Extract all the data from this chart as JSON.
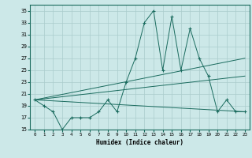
{
  "xlabel": "Humidex (Indice chaleur)",
  "bg_color": "#cce8e8",
  "grid_color": "#aacccc",
  "line_color": "#1a6b5e",
  "xlim": [
    -0.5,
    23.5
  ],
  "ylim": [
    15,
    36
  ],
  "yticks": [
    15,
    17,
    19,
    21,
    23,
    25,
    27,
    29,
    31,
    33,
    35
  ],
  "xticks": [
    0,
    1,
    2,
    3,
    4,
    5,
    6,
    7,
    8,
    9,
    10,
    11,
    12,
    13,
    14,
    15,
    16,
    17,
    18,
    19,
    20,
    21,
    22,
    23
  ],
  "series1_x": [
    0,
    1,
    2,
    3,
    4,
    5,
    6,
    7,
    8,
    9,
    10,
    11,
    12,
    13,
    14,
    15,
    16,
    17,
    18,
    19,
    20,
    21,
    22,
    23
  ],
  "series1_y": [
    20,
    19,
    18,
    15,
    17,
    17,
    17,
    18,
    20,
    18,
    23,
    27,
    33,
    35,
    25,
    34,
    25,
    32,
    27,
    24,
    18,
    20,
    18,
    18
  ],
  "trend1_x": [
    0,
    23
  ],
  "trend1_y": [
    20,
    27
  ],
  "trend2_x": [
    0,
    23
  ],
  "trend2_y": [
    20,
    24
  ],
  "trend3_x": [
    0,
    23
  ],
  "trend3_y": [
    20,
    18
  ]
}
